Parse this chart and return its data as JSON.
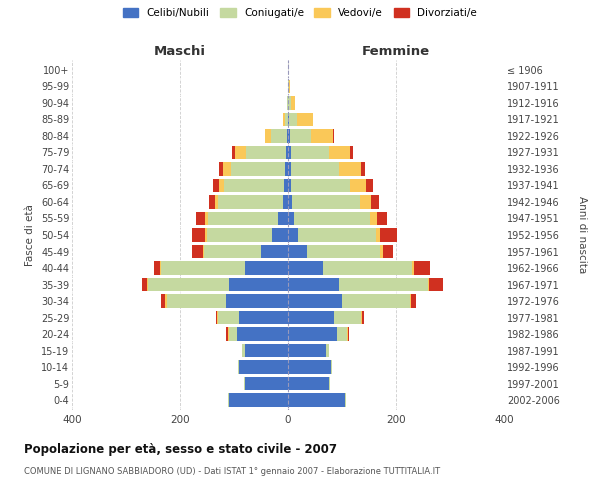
{
  "age_groups": [
    "0-4",
    "5-9",
    "10-14",
    "15-19",
    "20-24",
    "25-29",
    "30-34",
    "35-39",
    "40-44",
    "45-49",
    "50-54",
    "55-59",
    "60-64",
    "65-69",
    "70-74",
    "75-79",
    "80-84",
    "85-89",
    "90-94",
    "95-99",
    "100+"
  ],
  "birth_years": [
    "2002-2006",
    "1997-2001",
    "1992-1996",
    "1987-1991",
    "1982-1986",
    "1977-1981",
    "1972-1976",
    "1967-1971",
    "1962-1966",
    "1957-1961",
    "1952-1956",
    "1947-1951",
    "1942-1946",
    "1937-1941",
    "1932-1936",
    "1927-1931",
    "1922-1926",
    "1917-1921",
    "1912-1916",
    "1907-1911",
    "≤ 1906"
  ],
  "males": {
    "celibi": [
      110,
      80,
      90,
      80,
      95,
      90,
      115,
      110,
      80,
      50,
      30,
      18,
      10,
      8,
      5,
      3,
      2,
      0,
      0,
      0,
      0
    ],
    "coniugati": [
      2,
      2,
      2,
      5,
      15,
      40,
      110,
      150,
      155,
      105,
      120,
      130,
      120,
      110,
      100,
      75,
      30,
      5,
      2,
      0,
      0
    ],
    "vedovi": [
      0,
      0,
      0,
      1,
      2,
      2,
      2,
      2,
      2,
      2,
      3,
      5,
      5,
      10,
      15,
      20,
      10,
      5,
      0,
      0,
      0
    ],
    "divorziati": [
      0,
      0,
      0,
      0,
      2,
      2,
      8,
      8,
      12,
      20,
      25,
      18,
      12,
      10,
      8,
      5,
      0,
      0,
      0,
      0,
      0
    ]
  },
  "females": {
    "nubili": [
      105,
      75,
      80,
      70,
      90,
      85,
      100,
      95,
      65,
      35,
      18,
      12,
      8,
      5,
      5,
      5,
      3,
      2,
      0,
      0,
      0
    ],
    "coniugate": [
      2,
      2,
      2,
      5,
      20,
      50,
      125,
      165,
      165,
      135,
      145,
      140,
      125,
      110,
      90,
      70,
      40,
      15,
      5,
      2,
      0
    ],
    "vedove": [
      0,
      0,
      0,
      0,
      1,
      2,
      2,
      2,
      3,
      5,
      8,
      12,
      20,
      30,
      40,
      40,
      40,
      30,
      8,
      2,
      0
    ],
    "divorziate": [
      0,
      0,
      0,
      0,
      2,
      3,
      10,
      25,
      30,
      20,
      30,
      20,
      15,
      12,
      8,
      5,
      2,
      0,
      0,
      0,
      0
    ]
  },
  "colors": {
    "celibi": "#4472C4",
    "coniugati": "#C5D9A0",
    "vedovi": "#FAC858",
    "divorziati": "#D03020"
  },
  "title": "Popolazione per età, sesso e stato civile - 2007",
  "subtitle": "COMUNE DI LIGNANO SABBIADORO (UD) - Dati ISTAT 1° gennaio 2007 - Elaborazione TUTTITALIA.IT",
  "xlabel_left": "Maschi",
  "xlabel_right": "Femmine",
  "ylabel_left": "Fasce di età",
  "ylabel_right": "Anni di nascita",
  "xlim": 400,
  "legend_labels": [
    "Celibi/Nubili",
    "Coniugati/e",
    "Vedovi/e",
    "Divorziati/e"
  ],
  "bg_color": "#ffffff",
  "grid_color": "#cccccc"
}
